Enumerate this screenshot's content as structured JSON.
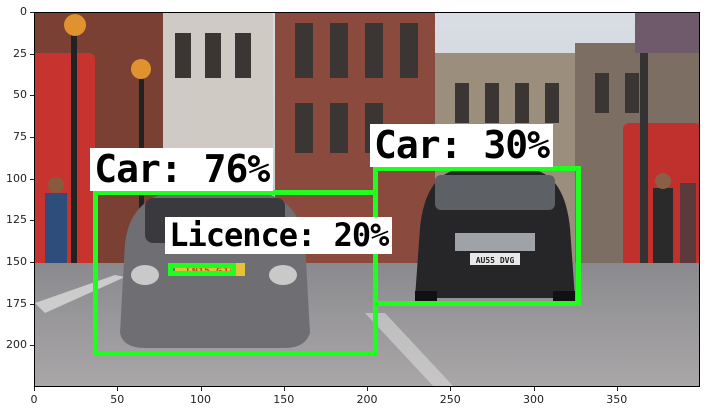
{
  "colors": {
    "box": "#1fff1f",
    "label_bg": "#ffffff",
    "label_text": "#000000"
  },
  "detections": [
    {
      "label": "Car: 76%",
      "x0": 35,
      "y0": 106,
      "x1": 206,
      "y1": 206
    },
    {
      "label": "Car: 30%",
      "x0": 203,
      "y0": 92,
      "x1": 328,
      "y1": 176
    },
    {
      "label": "Licence: 20%",
      "x0": 80,
      "y0": 150,
      "x1": 121,
      "y1": 158
    }
  ],
  "plate_text": "LN15 GJZ",
  "plate_text_right": "AU55 DVG",
  "axes": {
    "xlim": [
      0,
      400
    ],
    "ylim": [
      0,
      225
    ],
    "xticks": [
      "0",
      "50",
      "100",
      "150",
      "200",
      "250",
      "300",
      "350"
    ],
    "yticks": [
      "0",
      "25",
      "50",
      "75",
      "100",
      "125",
      "150",
      "175",
      "200"
    ]
  }
}
